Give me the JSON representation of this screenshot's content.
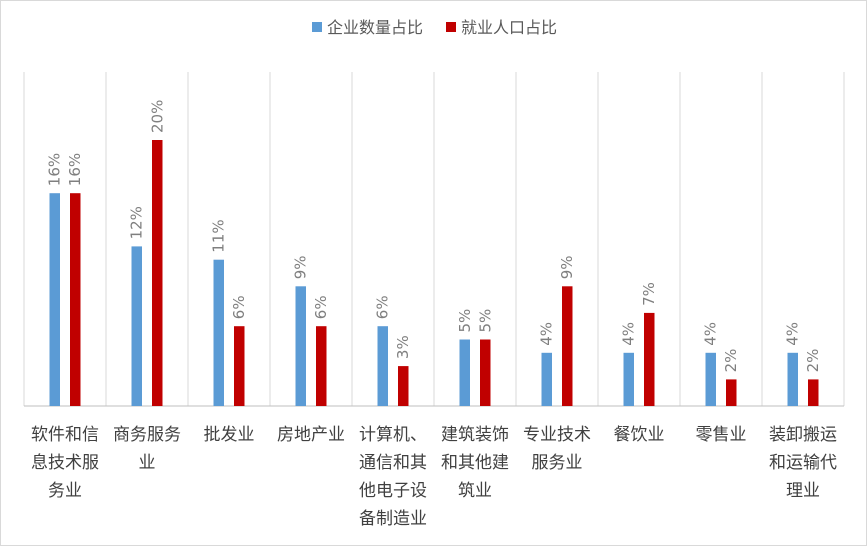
{
  "chart_data": {
    "type": "bar",
    "title": "",
    "xlabel": "",
    "ylabel": "",
    "ylim": [
      0,
      22
    ],
    "grid": "vertical category separators",
    "legend_position": "top-center",
    "categories": [
      [
        "软件和信",
        "息技术服",
        "务业"
      ],
      [
        "商务服务",
        "业"
      ],
      [
        "批发业"
      ],
      [
        "房地产业"
      ],
      [
        "计算机、",
        "通信和其",
        "他电子设",
        "备制造业"
      ],
      [
        "建筑装饰",
        "和其他建",
        "筑业"
      ],
      [
        "专业技术",
        "服务业"
      ],
      [
        "餐饮业"
      ],
      [
        "零售业"
      ],
      [
        "装卸搬运",
        "和运输代",
        "理业"
      ]
    ],
    "series": [
      {
        "name": "企业数量占比",
        "color": "#5b9bd5",
        "values": [
          16,
          12,
          11,
          9,
          6,
          5,
          4,
          4,
          4,
          4
        ],
        "labels": [
          "16%",
          "12%",
          "11%",
          "9%",
          "6%",
          "5%",
          "4%",
          "4%",
          "4%",
          "4%"
        ]
      },
      {
        "name": "就业人口占比",
        "color": "#c00000",
        "values": [
          16,
          20,
          6,
          6,
          3,
          5,
          9,
          7,
          2,
          2
        ],
        "labels": [
          "16%",
          "20%",
          "6%",
          "6%",
          "3%",
          "5%",
          "9%",
          "7%",
          "2%",
          "2%"
        ]
      }
    ]
  }
}
